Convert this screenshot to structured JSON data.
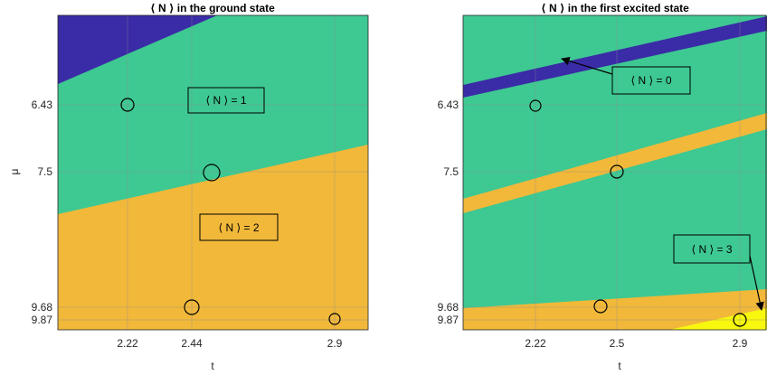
{
  "chart_data": [
    {
      "type": "heatmap",
      "title": "⟨ N ⟩ in the ground state",
      "xlabel": "t",
      "ylabel": "μ",
      "xlim": [
        2.0,
        3.0
      ],
      "ylim_top_to_bottom": [
        5.0,
        10.0
      ],
      "xticks": [
        2.22,
        2.44,
        2.9
      ],
      "yticks": [
        6.43,
        7.5,
        9.68,
        9.87
      ],
      "grid": true,
      "colors": {
        "N0": "#3a2ba6",
        "N1": "#3ec892",
        "N2": "#f1b83a"
      },
      "regions": [
        {
          "label": "⟨ N ⟩ = 0",
          "value": 0,
          "boundary_lower": [
            [
              2.0,
              6.2
            ],
            [
              2.5,
              5.0
            ]
          ]
        },
        {
          "label": "⟨ N ⟩ = 1",
          "value": 1
        },
        {
          "label": "⟨ N ⟩ = 2",
          "value": 2,
          "boundary_upper": [
            [
              2.0,
              8.08
            ],
            [
              3.0,
              7.0
            ]
          ]
        }
      ],
      "annotations": [
        {
          "text": "⟨ N ⟩ = 1",
          "at": [
            2.66,
            6.35
          ]
        },
        {
          "text": "⟨ N ⟩ = 2",
          "at": [
            2.63,
            8.55
          ]
        }
      ],
      "markers": [
        {
          "t": 2.22,
          "mu": 6.43,
          "r": 7
        },
        {
          "t": 2.48,
          "mu": 7.5,
          "r": 9
        },
        {
          "t": 2.44,
          "mu": 9.68,
          "r": 8
        },
        {
          "t": 2.9,
          "mu": 9.87,
          "r": 6
        }
      ]
    },
    {
      "type": "heatmap",
      "title": "⟨ N ⟩ in the first excited state",
      "xlabel": "t",
      "ylabel": "",
      "xlim": [
        2.0,
        3.0
      ],
      "ylim_top_to_bottom": [
        5.0,
        10.0
      ],
      "xticks": [
        2.22,
        2.5,
        2.9
      ],
      "yticks": [
        6.43,
        7.5,
        9.68,
        9.87
      ],
      "grid": true,
      "colors": {
        "N0": "#3a2ba6",
        "N1": "#3ec892",
        "N2": "#f1b83a",
        "N3": "#f8f80f"
      },
      "regions": [
        {
          "label": "⟨ N ⟩ = 0",
          "value": 0,
          "band": [
            [
              2.0,
              6.05,
              6.25
            ],
            [
              3.0,
              5.1,
              5.3
            ]
          ]
        },
        {
          "label": "⟨ N ⟩ = 2",
          "value": 2,
          "band": [
            [
              2.0,
              8.0,
              8.25
            ],
            [
              3.0,
              6.6,
              6.9
            ]
          ]
        },
        {
          "label": "⟨ N ⟩ = 2",
          "value": 2,
          "band": [
            [
              2.0,
              9.75,
              10.0
            ],
            [
              3.0,
              9.5,
              10.0
            ]
          ]
        },
        {
          "label": "⟨ N ⟩ = 3",
          "value": 3,
          "band": [
            [
              2.7,
              10.0,
              10.0
            ],
            [
              3.0,
              9.75,
              10.0
            ]
          ]
        }
      ],
      "annotations": [
        {
          "text": "⟨ N ⟩ = 0",
          "at": [
            2.6,
            6.05
          ]
        },
        {
          "text": "⟨ N ⟩ = 3",
          "at": [
            2.78,
            9.05
          ]
        }
      ],
      "markers": [
        {
          "t": 2.22,
          "mu": 6.43,
          "r": 6
        },
        {
          "t": 2.5,
          "mu": 7.5,
          "r": 7
        },
        {
          "t": 2.44,
          "mu": 9.68,
          "r": 7
        },
        {
          "t": 2.9,
          "mu": 9.87,
          "r": 7
        }
      ]
    }
  ]
}
